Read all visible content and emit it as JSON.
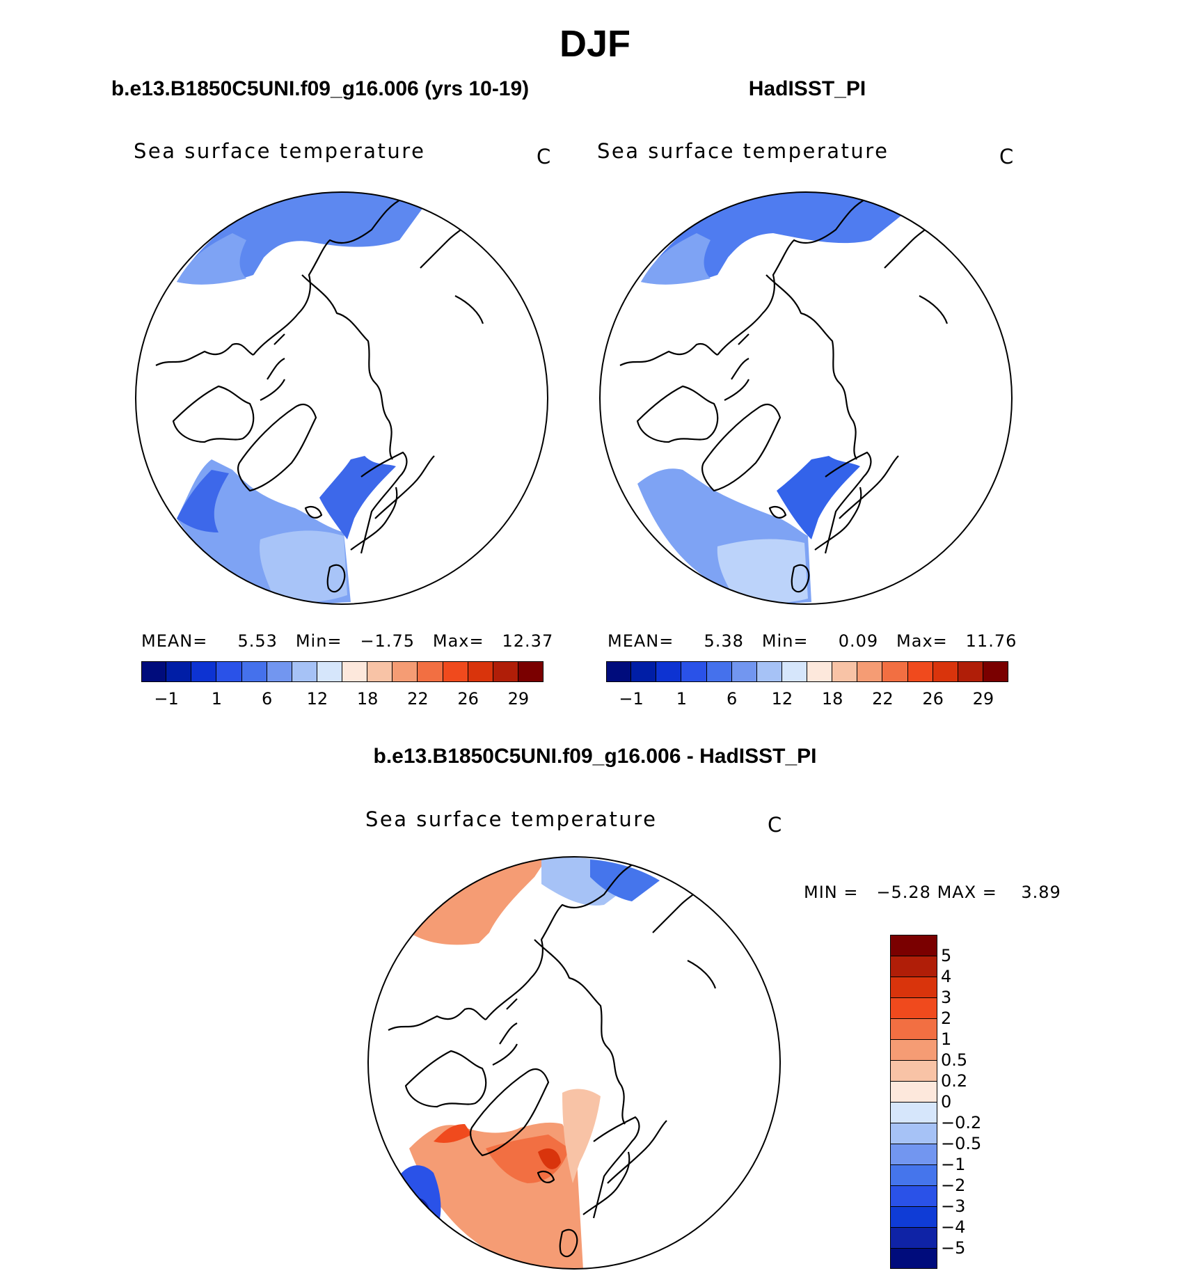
{
  "figure": {
    "title": "DJF"
  },
  "panels": [
    {
      "title": "b.e13.B1850C5UNI.f09_g16.006 (yrs 10-19)",
      "variable": "Sea surface temperature",
      "unit": "C",
      "stats": {
        "mean_label": "MEAN=",
        "mean": "5.53",
        "min_label": "Min=",
        "min": "−1.75",
        "max_label": "Max=",
        "max": "12.37"
      },
      "fill_colors": {
        "north": "#5d88f0",
        "atlantic": "#7ea3f4",
        "atlantic_warm": "#a8c4f8",
        "norway": "#3d68ea"
      }
    },
    {
      "title": "HadISST_PI",
      "variable": "Sea surface temperature",
      "unit": "C",
      "stats": {
        "mean_label": "MEAN=",
        "mean": "5.38",
        "min_label": "Min=",
        "min": "0.09",
        "max_label": "Max=",
        "max": "11.76"
      },
      "fill_colors": {
        "north": "#4f7cf0",
        "atlantic": "#7ea3f4",
        "atlantic_warm": "#bcd3fa",
        "norway": "#3363ea"
      }
    },
    {
      "title": "b.e13.B1850C5UNI.f09_g16.006 - HadISST_PI",
      "variable": "Sea surface temperature",
      "unit": "C",
      "stats": {
        "min_label": "MIN =",
        "min": "−5.28",
        "max_label": "MAX =",
        "max": "3.89"
      }
    }
  ],
  "colorbar_abs": {
    "colors": [
      "#000c7c",
      "#001ea6",
      "#0d33d2",
      "#2a52e8",
      "#4571ec",
      "#7296f0",
      "#a6c2f6",
      "#d6e6fb",
      "#fde8dc",
      "#f8c3a6",
      "#f59c74",
      "#f26f42",
      "#f04a1d",
      "#d9340c",
      "#b01e08",
      "#7a0000"
    ],
    "labels": [
      "−1",
      "1",
      "6",
      "12",
      "18",
      "22",
      "26",
      "29"
    ]
  },
  "colorbar_diff": {
    "colors": [
      "#000c7c",
      "#0f23a6",
      "#0f3cd6",
      "#2a52e8",
      "#4575ec",
      "#7296f0",
      "#a6c2f6",
      "#d6e6fb",
      "#fde8dc",
      "#f8c3a6",
      "#f59c74",
      "#f26f42",
      "#f04a1d",
      "#d9340c",
      "#b01e08",
      "#7a0000"
    ],
    "labels": [
      "−5",
      "−4",
      "−3",
      "−2",
      "−1",
      "−0.5",
      "−0.2",
      "0",
      "0.2",
      "0.5",
      "1",
      "2",
      "3",
      "4",
      "5"
    ]
  }
}
